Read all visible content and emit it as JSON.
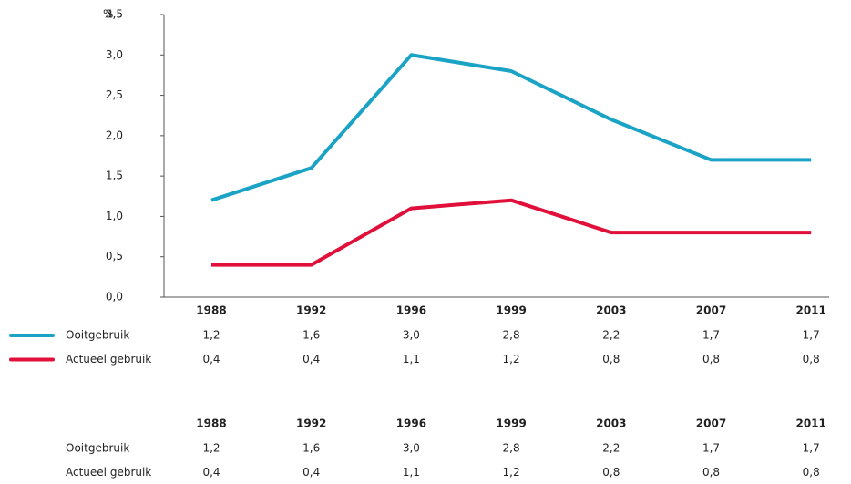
{
  "chart_data": {
    "type": "line",
    "y_label": "%",
    "categories": [
      "1988",
      "1992",
      "1996",
      "1999",
      "2003",
      "2007",
      "2011"
    ],
    "series": [
      {
        "name": "Ooitgebruik",
        "color": "#1ba3c6",
        "values": [
          1.2,
          1.6,
          3.0,
          2.8,
          2.2,
          1.7,
          1.7
        ],
        "value_labels": [
          "1,2",
          "1,6",
          "3,0",
          "2,8",
          "2,2",
          "1,7",
          "1,7"
        ]
      },
      {
        "name": "Actueel gebruik",
        "color": "#e0103a",
        "values": [
          0.4,
          0.4,
          1.1,
          1.2,
          0.8,
          0.8,
          0.8
        ],
        "value_labels": [
          "0,4",
          "0,4",
          "1,1",
          "1,2",
          "0,8",
          "0,8",
          "0,8"
        ]
      }
    ],
    "ylim": [
      0,
      3.5
    ],
    "yticks": [
      {
        "value": 0,
        "label": "0,0"
      },
      {
        "value": 0.5,
        "label": "0,5"
      },
      {
        "value": 1,
        "label": "1,0"
      },
      {
        "value": 1.5,
        "label": "1,5"
      },
      {
        "value": 2,
        "label": "2,0"
      },
      {
        "value": 2.5,
        "label": "2,5"
      },
      {
        "value": 3,
        "label": "3,0"
      },
      {
        "value": 3.5,
        "label": "3,5"
      }
    ]
  }
}
